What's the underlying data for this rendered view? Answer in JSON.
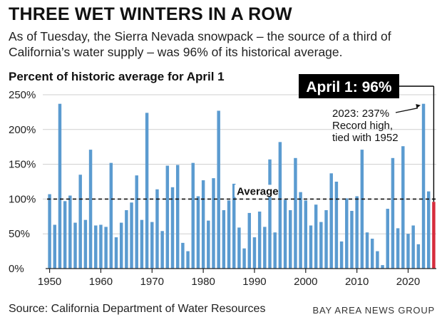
{
  "chart_data": {
    "type": "bar",
    "title": "THREE WET WINTERS IN A ROW",
    "subtitle": "As of Tuesday, the Sierra Nevada snowpack – the source of a third of California’s water supply – was 96% of its historical average.",
    "chart_title": "Percent of historic average for April 1",
    "xlabel": "",
    "ylabel": "Percent of historic average for April 1",
    "ylim": [
      0,
      250
    ],
    "yticks": [
      0,
      50,
      100,
      150,
      200,
      250
    ],
    "ytick_labels": [
      "0%",
      "50%",
      "100%",
      "150%",
      "200%",
      "250%"
    ],
    "xticks": [
      1950,
      1960,
      1970,
      1980,
      1990,
      2000,
      2010,
      2020
    ],
    "xtick_labels": [
      "1950",
      "1960",
      "1970",
      "1980",
      "1990",
      "2000",
      "2010",
      "2020"
    ],
    "grid": true,
    "x": [
      1950,
      1951,
      1952,
      1953,
      1954,
      1955,
      1956,
      1957,
      1958,
      1959,
      1960,
      1961,
      1962,
      1963,
      1964,
      1965,
      1966,
      1967,
      1968,
      1969,
      1970,
      1971,
      1972,
      1973,
      1974,
      1975,
      1976,
      1977,
      1978,
      1979,
      1980,
      1981,
      1982,
      1983,
      1984,
      1985,
      1986,
      1987,
      1988,
      1989,
      1990,
      1991,
      1992,
      1993,
      1994,
      1995,
      1996,
      1997,
      1998,
      1999,
      2000,
      2001,
      2002,
      2003,
      2004,
      2005,
      2006,
      2007,
      2008,
      2009,
      2010,
      2011,
      2012,
      2013,
      2014,
      2015,
      2016,
      2017,
      2018,
      2019,
      2020,
      2021,
      2022,
      2023,
      2024,
      2025
    ],
    "values": [
      107,
      63,
      237,
      97,
      105,
      66,
      135,
      70,
      171,
      62,
      63,
      60,
      152,
      45,
      66,
      84,
      95,
      134,
      70,
      224,
      67,
      114,
      54,
      148,
      117,
      149,
      37,
      25,
      152,
      104,
      127,
      69,
      130,
      227,
      84,
      98,
      122,
      59,
      29,
      80,
      45,
      82,
      60,
      157,
      52,
      182,
      99,
      84,
      159,
      110,
      98,
      62,
      92,
      67,
      84,
      137,
      125,
      39,
      101,
      83,
      104,
      171,
      52,
      43,
      25,
      5,
      86,
      159,
      58,
      176,
      50,
      62,
      35,
      237,
      111,
      96
    ],
    "highlight": {
      "year": 2025,
      "value": 96,
      "color": "#d62b3c"
    },
    "bar_color": "#5b9bd0",
    "reference_line": {
      "value": 100,
      "label": "Average"
    },
    "annotations": {
      "callout": "April 1: 96%",
      "record_lines": [
        "2023: 237%",
        "Record high,",
        "tied with 1952"
      ]
    }
  },
  "footer": {
    "source": "Source: California Department of Water Resources",
    "credit": "BAY AREA NEWS GROUP"
  }
}
